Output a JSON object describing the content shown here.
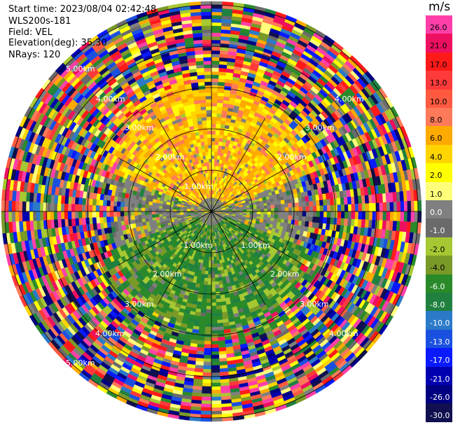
{
  "header": {
    "start_time": "Start time: 2023/08/04 02:42:48",
    "site": "WLS200s-181",
    "field": "Field: VEL",
    "elevation": "Elevation(deg): 35.30",
    "nrays": "NRays: 120"
  },
  "colorbar": {
    "unit": "m/s",
    "levels": [
      "26.0",
      "21.0",
      "17.0",
      "13.0",
      "10.0",
      "8.0",
      "6.0",
      "4.0",
      "2.0",
      "1.0",
      "0.0",
      "-1.0",
      "-2.0",
      "-4.0",
      "-6.0",
      "-8.0",
      "-10.0",
      "-13.0",
      "-17.0",
      "-21.0",
      "-26.0",
      "-30.0"
    ],
    "colors": [
      "#ff3fa8",
      "#ee1060",
      "#ff1a1a",
      "#ff3a3a",
      "#ff5a40",
      "#ff7a5a",
      "#ffaa00",
      "#ffd400",
      "#ffff00",
      "#ffff7a",
      "#808080",
      "#6a6a6a",
      "#a6c832",
      "#7a9a28",
      "#2a8a2a",
      "#208040",
      "#2a7ac8",
      "#1a50e0",
      "#0a1aff",
      "#0000b0",
      "#000080",
      "#101050"
    ]
  },
  "chart_data": {
    "type": "heatmap",
    "projection": "polar PPI",
    "field": "VEL",
    "units": "m/s",
    "range_rings_km": [
      1.0,
      2.0,
      3.0,
      4.0,
      5.0
    ],
    "ring_labels": {
      "left_upper": [
        "5.00km",
        "4.00km",
        "3.00km",
        "2.00km",
        "1.00km"
      ],
      "right_upper": [
        "4.00km",
        "3.00km",
        "2.00km"
      ],
      "left_lower": [
        "1.00km",
        "2.00km",
        "3.00km",
        "4.00km",
        "5.00km"
      ],
      "right_lower": [
        "1.00km",
        "2.00km",
        "3.00km",
        "4.00km"
      ]
    },
    "nrays": 120,
    "pattern": {
      "north_inner_sector": "positive 2.0 to 8.0 m/s",
      "south_inner_sector": "negative -2.0 to -8.0 m/s",
      "east_west_band": "near 0.0 m/s",
      "outer_range": "noise, all levels"
    }
  }
}
